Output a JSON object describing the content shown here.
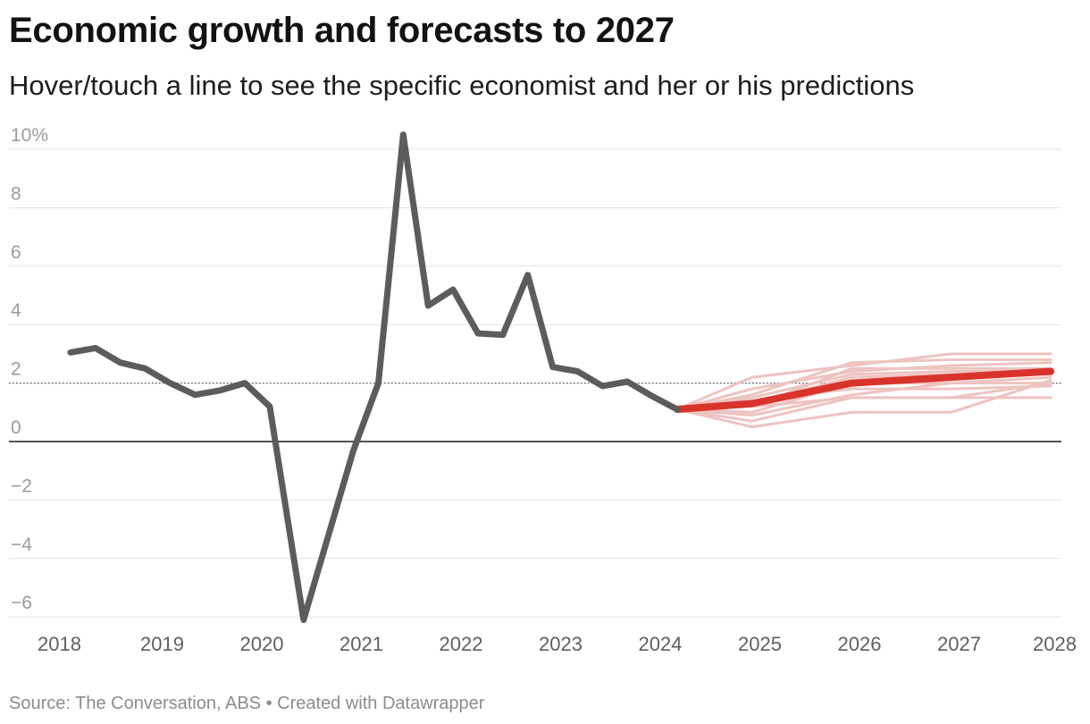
{
  "header": {
    "title": "Economic growth and forecasts to 2027",
    "subtitle": "Hover/touch a line to see the specific economist and her or his predictions"
  },
  "footer": {
    "source_text": "Source: The Conversation, ABS • Created with Datawrapper"
  },
  "colors": {
    "actual": "#5c5c5c",
    "consensus": "#d9342b",
    "forecasts": "#edc3c0",
    "zero_line": "#1a1a1a",
    "gridline": "#e2e2e2",
    "target_line": "#555555"
  },
  "chart_data": {
    "type": "line",
    "title": "Economic growth and forecasts to 2027",
    "xlim": [
      2018,
      2028
    ],
    "ylim": [
      -6.2,
      10.8
    ],
    "x_ticks": [
      2018,
      2019,
      2020,
      2021,
      2022,
      2023,
      2024,
      2025,
      2026,
      2027,
      2028
    ],
    "x_tick_labels": [
      "2018",
      "2019",
      "2020",
      "2021",
      "2022",
      "2023",
      "2024",
      "2025",
      "2026",
      "2027",
      "2028"
    ],
    "y_ticks": [
      -6,
      -4,
      -2,
      0,
      2,
      4,
      6,
      8,
      10
    ],
    "y_tick_labels": [
      "−6",
      "−4",
      "−2",
      "0",
      "2",
      "4",
      "6",
      "8",
      "10%"
    ],
    "grid": true,
    "reference_line_dotted": 2,
    "actual": {
      "x": [
        2018.08,
        2018.33,
        2018.58,
        2018.83,
        2019.08,
        2019.33,
        2019.58,
        2019.83,
        2020.08,
        2020.42,
        2020.67,
        2020.92,
        2021.17,
        2021.42,
        2021.67,
        2021.92,
        2022.17,
        2022.42,
        2022.67,
        2022.92,
        2023.17,
        2023.42,
        2023.67,
        2023.92,
        2024.17
      ],
      "y": [
        3.05,
        3.2,
        2.7,
        2.5,
        2.0,
        1.6,
        1.75,
        2.0,
        1.2,
        -6.1,
        -3.2,
        -0.3,
        2.0,
        10.5,
        4.65,
        5.2,
        3.7,
        3.65,
        5.7,
        2.55,
        2.4,
        1.9,
        2.05,
        1.55,
        1.1
      ]
    },
    "consensus": {
      "x": [
        2024.17,
        2024.92,
        2025.92,
        2026.92,
        2027.92
      ],
      "y": [
        1.1,
        1.3,
        2.0,
        2.2,
        2.4
      ]
    },
    "forecasts_x": [
      2024.17,
      2024.92,
      2025.92,
      2026.92,
      2027.92
    ],
    "forecasts": [
      [
        1.1,
        2.2,
        2.6,
        3.0,
        3.0
      ],
      [
        1.1,
        1.6,
        2.7,
        2.8,
        2.8
      ],
      [
        1.1,
        1.8,
        2.4,
        2.6,
        2.7
      ],
      [
        1.1,
        1.2,
        2.5,
        2.5,
        2.5
      ],
      [
        1.1,
        1.5,
        2.3,
        2.4,
        2.4
      ],
      [
        1.1,
        1.3,
        2.2,
        2.3,
        2.3
      ],
      [
        1.1,
        1.0,
        2.0,
        2.0,
        2.2
      ],
      [
        1.1,
        0.9,
        1.6,
        2.0,
        2.0
      ],
      [
        1.1,
        1.4,
        1.8,
        1.8,
        1.9
      ],
      [
        1.1,
        0.7,
        1.5,
        1.5,
        2.0
      ],
      [
        1.1,
        0.5,
        1.0,
        1.0,
        2.1
      ],
      [
        1.1,
        1.2,
        1.5,
        1.5,
        1.5
      ]
    ]
  }
}
